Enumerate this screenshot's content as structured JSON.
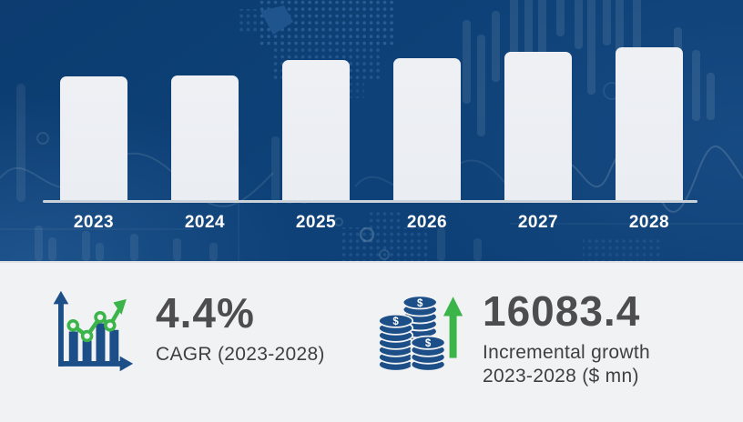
{
  "chart_data": {
    "type": "bar",
    "title": "Market growth bar chart 2023-2028",
    "categories": [
      "2023",
      "2024",
      "2025",
      "2026",
      "2027",
      "2028"
    ],
    "values": [
      81,
      82,
      92,
      93,
      97,
      100
    ],
    "value_unit": "relative bar height, % of tallest bar (no numeric value axis shown in image)",
    "xlabel": "",
    "ylabel": "",
    "grid": false,
    "legend": false,
    "axis_line_shown": true,
    "label_position": "below-axis"
  },
  "stats": {
    "cagr": {
      "value": "4.4%",
      "label": "CAGR (2023-2028)"
    },
    "incremental_growth": {
      "value": "16083.4",
      "label_line1": "Incremental growth",
      "label_line2": "2023-2028 ($ mn)"
    }
  },
  "icons": {
    "cagr_icon": "bar-chart-with-green-growth-arrow-icon",
    "incremental_icon": "coin-stacks-with-green-up-arrow-icon"
  },
  "colors": {
    "chart_background": "#0d4177",
    "panel_background": "#f1f2f4",
    "bar_fill": "#eaedf2",
    "axis_line": "#ccd2d9",
    "year_label_text": "#ffffff",
    "stat_value_text": "#4d4d4f",
    "stat_label_text": "#3e3f41",
    "icon_blue": "#1c4e87",
    "icon_green": "#3bb54a"
  }
}
